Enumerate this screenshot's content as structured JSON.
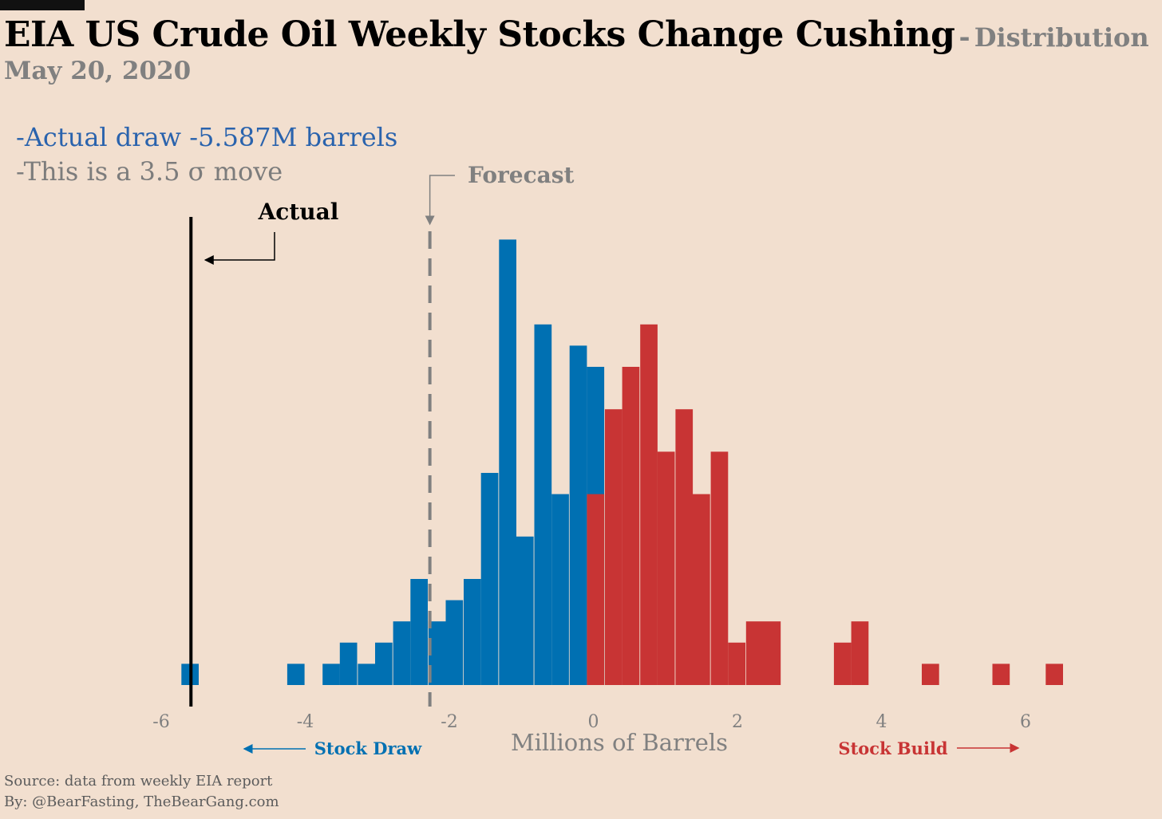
{
  "header": {
    "title": "EIA US Crude Oil Weekly Stocks Change Cushing",
    "separator": "-",
    "subtitle": "Distribution",
    "date": "May 20, 2020"
  },
  "notes": {
    "line1": "-Actual draw -5.587M barrels",
    "line2": "-This is a 3.5 σ move"
  },
  "annotations": {
    "actual_label": "Actual",
    "forecast_label": "Forecast",
    "stock_draw": "Stock Draw",
    "stock_build": "Stock Build"
  },
  "footer": {
    "source": "Source: data from  weekly EIA report",
    "byline": "By: @BearFasting, TheBearGang.com"
  },
  "colors": {
    "background": "#f2dfcf",
    "draw": "#0070b2",
    "build": "#c83434",
    "actual_line": "#000000",
    "forecast_line": "#808080",
    "text_gray": "#808080",
    "note_blue": "#2a63ad"
  },
  "chart_data": {
    "type": "bar",
    "title": "EIA US Crude Oil Weekly Stocks Change Cushing - Distribution",
    "xlabel": "Millions of Barrels",
    "ylabel": "",
    "xlim": [
      -6,
      6.5
    ],
    "ylim": [
      0,
      21
    ],
    "xticks": [
      -6,
      -4,
      -2,
      0,
      2,
      4,
      6
    ],
    "xtick_labels": [
      "-6",
      "-4",
      "-2",
      "0",
      "2",
      "4",
      "6"
    ],
    "grid": false,
    "bin_width": 0.245,
    "actual": -5.587,
    "forecast": -2.27,
    "series": [
      {
        "name": "Stock Draw",
        "bins": [
          {
            "x": -5.72,
            "count": 1
          },
          {
            "x": -4.25,
            "count": 1
          },
          {
            "x": -3.76,
            "count": 1
          },
          {
            "x": -3.52,
            "count": 2
          },
          {
            "x": -3.27,
            "count": 1
          },
          {
            "x": -3.03,
            "count": 2
          },
          {
            "x": -2.78,
            "count": 3
          },
          {
            "x": -2.54,
            "count": 5
          },
          {
            "x": -2.29,
            "count": 3
          },
          {
            "x": -2.05,
            "count": 4
          },
          {
            "x": -1.8,
            "count": 5
          },
          {
            "x": -1.56,
            "count": 10
          },
          {
            "x": -1.31,
            "count": 21
          },
          {
            "x": -1.07,
            "count": 7
          },
          {
            "x": -0.82,
            "count": 17
          },
          {
            "x": -0.58,
            "count": 9
          },
          {
            "x": -0.33,
            "count": 16
          },
          {
            "x": -0.09,
            "count": 15
          }
        ]
      },
      {
        "name": "Stock Build",
        "bins": [
          {
            "x": -0.09,
            "count": 9
          },
          {
            "x": 0.16,
            "count": 13
          },
          {
            "x": 0.4,
            "count": 15
          },
          {
            "x": 0.65,
            "count": 17
          },
          {
            "x": 0.89,
            "count": 11
          },
          {
            "x": 1.14,
            "count": 13
          },
          {
            "x": 1.38,
            "count": 9
          },
          {
            "x": 1.63,
            "count": 11
          },
          {
            "x": 1.87,
            "count": 2
          },
          {
            "x": 2.12,
            "count": 3
          },
          {
            "x": 2.36,
            "count": 3
          },
          {
            "x": 3.34,
            "count": 2
          },
          {
            "x": 3.58,
            "count": 3
          },
          {
            "x": 4.56,
            "count": 1
          },
          {
            "x": 5.54,
            "count": 1
          },
          {
            "x": 6.28,
            "count": 1
          }
        ]
      }
    ]
  }
}
